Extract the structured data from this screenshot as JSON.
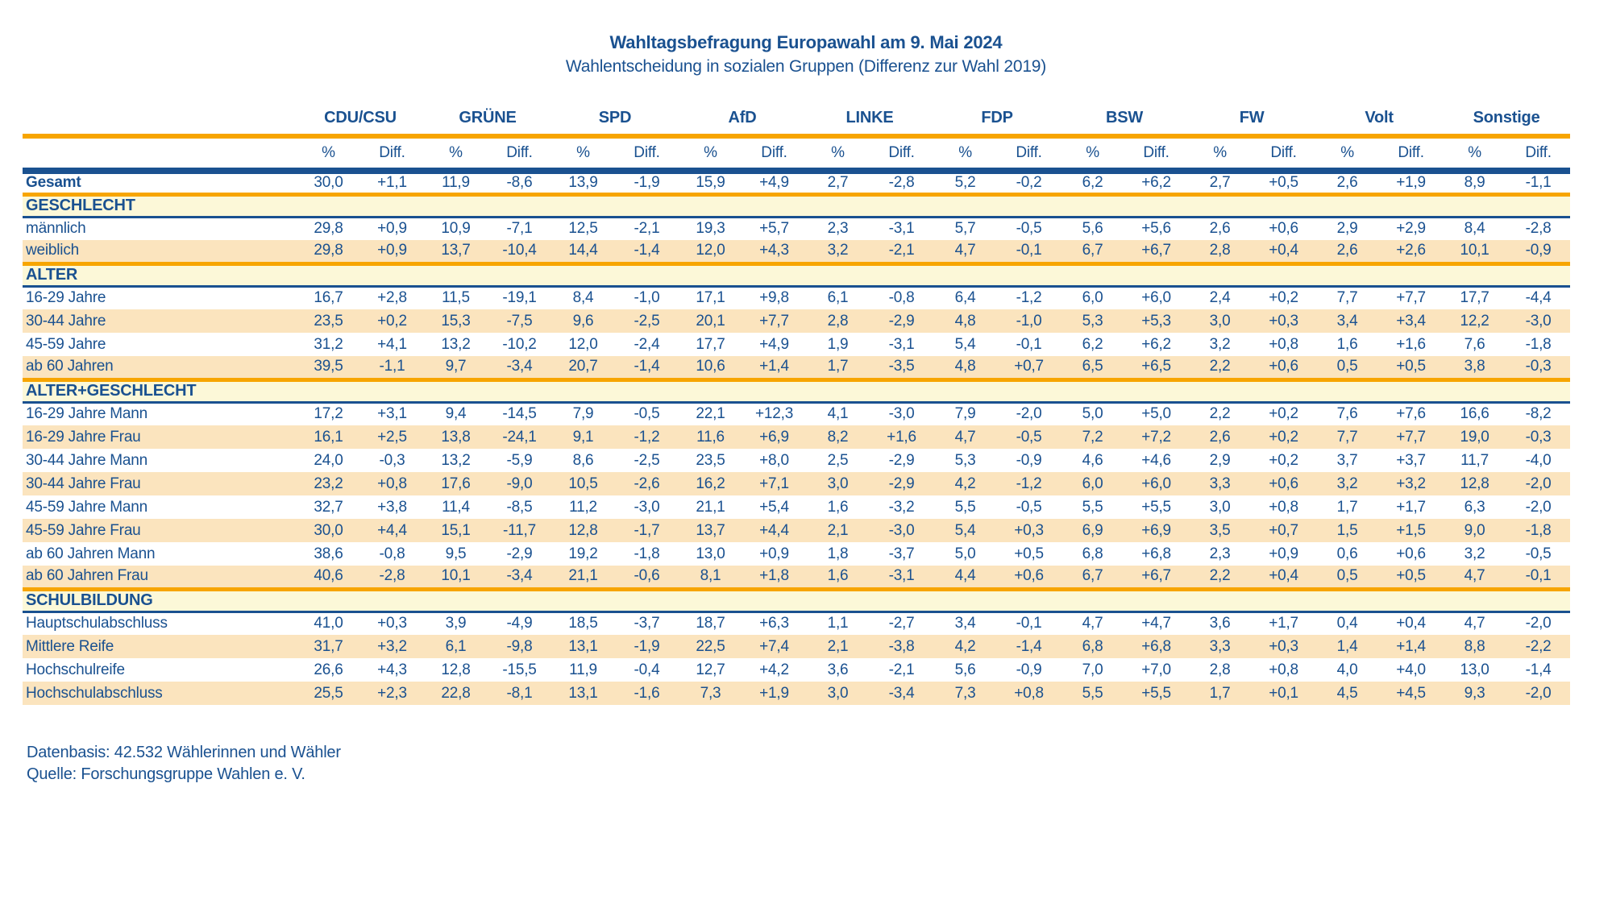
{
  "title": "Wahltagsbefragung Europawahl am 9. Mai 2024",
  "subtitle": "Wahlentscheidung in sozialen Gruppen (Differenz zur Wahl 2019)",
  "colors": {
    "text_blue": "#1A5190",
    "line_blue": "#1A5190",
    "separator_orange": "#F7A500",
    "section_banner_yellow": "#FCF8D8",
    "row_stripe_peach": "#FBE4BE"
  },
  "table": {
    "parties": [
      "CDU/CSU",
      "GRÜNE",
      "SPD",
      "AfD",
      "LINKE",
      "FDP",
      "BSW",
      "FW",
      "Volt",
      "Sonstige"
    ],
    "subheader": {
      "percent": "%",
      "diff": "Diff."
    },
    "sections": [
      {
        "header": "",
        "rows": [
          {
            "label": "Gesamt",
            "bold": true,
            "values": [
              "30,0",
              "+1,1",
              "11,9",
              "-8,6",
              "13,9",
              "-1,9",
              "15,9",
              "+4,9",
              "2,7",
              "-2,8",
              "5,2",
              "-0,2",
              "6,2",
              "+6,2",
              "2,7",
              "+0,5",
              "2,6",
              "+1,9",
              "8,9",
              "-1,1"
            ]
          }
        ]
      },
      {
        "header": "GESCHLECHT",
        "rows": [
          {
            "label": "männlich",
            "bold": false,
            "values": [
              "29,8",
              "+0,9",
              "10,9",
              "-7,1",
              "12,5",
              "-2,1",
              "19,3",
              "+5,7",
              "2,3",
              "-3,1",
              "5,7",
              "-0,5",
              "5,6",
              "+5,6",
              "2,6",
              "+0,6",
              "2,9",
              "+2,9",
              "8,4",
              "-2,8"
            ]
          },
          {
            "label": "weiblich",
            "bold": false,
            "values": [
              "29,8",
              "+0,9",
              "13,7",
              "-10,4",
              "14,4",
              "-1,4",
              "12,0",
              "+4,3",
              "3,2",
              "-2,1",
              "4,7",
              "-0,1",
              "6,7",
              "+6,7",
              "2,8",
              "+0,4",
              "2,6",
              "+2,6",
              "10,1",
              "-0,9"
            ]
          }
        ]
      },
      {
        "header": "ALTER",
        "rows": [
          {
            "label": "16-29 Jahre",
            "bold": false,
            "values": [
              "16,7",
              "+2,8",
              "11,5",
              "-19,1",
              "8,4",
              "-1,0",
              "17,1",
              "+9,8",
              "6,1",
              "-0,8",
              "6,4",
              "-1,2",
              "6,0",
              "+6,0",
              "2,4",
              "+0,2",
              "7,7",
              "+7,7",
              "17,7",
              "-4,4"
            ]
          },
          {
            "label": "30-44 Jahre",
            "bold": false,
            "values": [
              "23,5",
              "+0,2",
              "15,3",
              "-7,5",
              "9,6",
              "-2,5",
              "20,1",
              "+7,7",
              "2,8",
              "-2,9",
              "4,8",
              "-1,0",
              "5,3",
              "+5,3",
              "3,0",
              "+0,3",
              "3,4",
              "+3,4",
              "12,2",
              "-3,0"
            ]
          },
          {
            "label": "45-59 Jahre",
            "bold": false,
            "values": [
              "31,2",
              "+4,1",
              "13,2",
              "-10,2",
              "12,0",
              "-2,4",
              "17,7",
              "+4,9",
              "1,9",
              "-3,1",
              "5,4",
              "-0,1",
              "6,2",
              "+6,2",
              "3,2",
              "+0,8",
              "1,6",
              "+1,6",
              "7,6",
              "-1,8"
            ]
          },
          {
            "label": "ab 60 Jahren",
            "bold": false,
            "values": [
              "39,5",
              "-1,1",
              "9,7",
              "-3,4",
              "20,7",
              "-1,4",
              "10,6",
              "+1,4",
              "1,7",
              "-3,5",
              "4,8",
              "+0,7",
              "6,5",
              "+6,5",
              "2,2",
              "+0,6",
              "0,5",
              "+0,5",
              "3,8",
              "-0,3"
            ]
          }
        ]
      },
      {
        "header": "ALTER+GESCHLECHT",
        "rows": [
          {
            "label": "16-29 Jahre Mann",
            "bold": false,
            "values": [
              "17,2",
              "+3,1",
              "9,4",
              "-14,5",
              "7,9",
              "-0,5",
              "22,1",
              "+12,3",
              "4,1",
              "-3,0",
              "7,9",
              "-2,0",
              "5,0",
              "+5,0",
              "2,2",
              "+0,2",
              "7,6",
              "+7,6",
              "16,6",
              "-8,2"
            ]
          },
          {
            "label": "16-29 Jahre Frau",
            "bold": false,
            "values": [
              "16,1",
              "+2,5",
              "13,8",
              "-24,1",
              "9,1",
              "-1,2",
              "11,6",
              "+6,9",
              "8,2",
              "+1,6",
              "4,7",
              "-0,5",
              "7,2",
              "+7,2",
              "2,6",
              "+0,2",
              "7,7",
              "+7,7",
              "19,0",
              "-0,3"
            ]
          },
          {
            "label": "30-44 Jahre Mann",
            "bold": false,
            "values": [
              "24,0",
              "-0,3",
              "13,2",
              "-5,9",
              "8,6",
              "-2,5",
              "23,5",
              "+8,0",
              "2,5",
              "-2,9",
              "5,3",
              "-0,9",
              "4,6",
              "+4,6",
              "2,9",
              "+0,2",
              "3,7",
              "+3,7",
              "11,7",
              "-4,0"
            ]
          },
          {
            "label": "30-44 Jahre Frau",
            "bold": false,
            "values": [
              "23,2",
              "+0,8",
              "17,6",
              "-9,0",
              "10,5",
              "-2,6",
              "16,2",
              "+7,1",
              "3,0",
              "-2,9",
              "4,2",
              "-1,2",
              "6,0",
              "+6,0",
              "3,3",
              "+0,6",
              "3,2",
              "+3,2",
              "12,8",
              "-2,0"
            ]
          },
          {
            "label": "45-59 Jahre Mann",
            "bold": false,
            "values": [
              "32,7",
              "+3,8",
              "11,4",
              "-8,5",
              "11,2",
              "-3,0",
              "21,1",
              "+5,4",
              "1,6",
              "-3,2",
              "5,5",
              "-0,5",
              "5,5",
              "+5,5",
              "3,0",
              "+0,8",
              "1,7",
              "+1,7",
              "6,3",
              "-2,0"
            ]
          },
          {
            "label": "45-59 Jahre Frau",
            "bold": false,
            "values": [
              "30,0",
              "+4,4",
              "15,1",
              "-11,7",
              "12,8",
              "-1,7",
              "13,7",
              "+4,4",
              "2,1",
              "-3,0",
              "5,4",
              "+0,3",
              "6,9",
              "+6,9",
              "3,5",
              "+0,7",
              "1,5",
              "+1,5",
              "9,0",
              "-1,8"
            ]
          },
          {
            "label": "ab 60 Jahren Mann",
            "bold": false,
            "values": [
              "38,6",
              "-0,8",
              "9,5",
              "-2,9",
              "19,2",
              "-1,8",
              "13,0",
              "+0,9",
              "1,8",
              "-3,7",
              "5,0",
              "+0,5",
              "6,8",
              "+6,8",
              "2,3",
              "+0,9",
              "0,6",
              "+0,6",
              "3,2",
              "-0,5"
            ]
          },
          {
            "label": "ab 60 Jahren Frau",
            "bold": false,
            "values": [
              "40,6",
              "-2,8",
              "10,1",
              "-3,4",
              "21,1",
              "-0,6",
              "8,1",
              "+1,8",
              "1,6",
              "-3,1",
              "4,4",
              "+0,6",
              "6,7",
              "+6,7",
              "2,2",
              "+0,4",
              "0,5",
              "+0,5",
              "4,7",
              "-0,1"
            ]
          }
        ]
      },
      {
        "header": "SCHULBILDUNG",
        "rows": [
          {
            "label": "Hauptschulabschluss",
            "bold": false,
            "values": [
              "41,0",
              "+0,3",
              "3,9",
              "-4,9",
              "18,5",
              "-3,7",
              "18,7",
              "+6,3",
              "1,1",
              "-2,7",
              "3,4",
              "-0,1",
              "4,7",
              "+4,7",
              "3,6",
              "+1,7",
              "0,4",
              "+0,4",
              "4,7",
              "-2,0"
            ]
          },
          {
            "label": "Mittlere Reife",
            "bold": false,
            "values": [
              "31,7",
              "+3,2",
              "6,1",
              "-9,8",
              "13,1",
              "-1,9",
              "22,5",
              "+7,4",
              "2,1",
              "-3,8",
              "4,2",
              "-1,4",
              "6,8",
              "+6,8",
              "3,3",
              "+0,3",
              "1,4",
              "+1,4",
              "8,8",
              "-2,2"
            ]
          },
          {
            "label": "Hochschulreife",
            "bold": false,
            "values": [
              "26,6",
              "+4,3",
              "12,8",
              "-15,5",
              "11,9",
              "-0,4",
              "12,7",
              "+4,2",
              "3,6",
              "-2,1",
              "5,6",
              "-0,9",
              "7,0",
              "+7,0",
              "2,8",
              "+0,8",
              "4,0",
              "+4,0",
              "13,0",
              "-1,4"
            ]
          },
          {
            "label": "Hochschulabschluss",
            "bold": false,
            "values": [
              "25,5",
              "+2,3",
              "22,8",
              "-8,1",
              "13,1",
              "-1,6",
              "7,3",
              "+1,9",
              "3,0",
              "-3,4",
              "7,3",
              "+0,8",
              "5,5",
              "+5,5",
              "1,7",
              "+0,1",
              "4,5",
              "+4,5",
              "9,3",
              "-2,0"
            ]
          }
        ]
      }
    ]
  },
  "footer": {
    "line1": "Datenbasis: 42.532 Wählerinnen und Wähler",
    "line2": "Quelle: Forschungsgruppe Wahlen e. V."
  }
}
